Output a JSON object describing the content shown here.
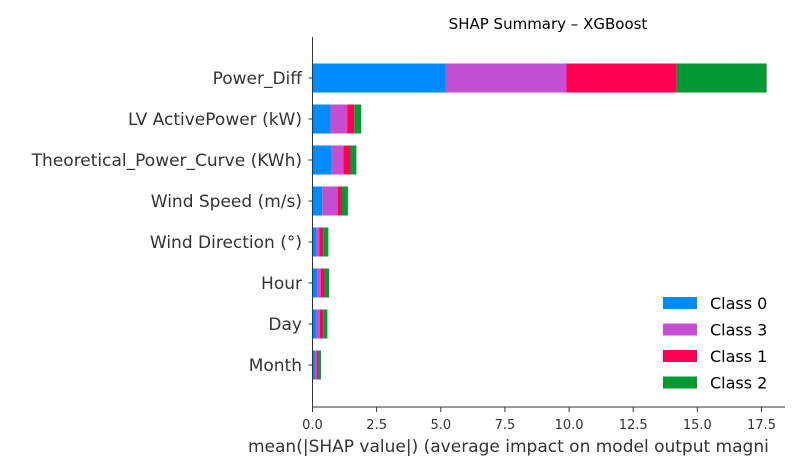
{
  "chart_data": {
    "type": "bar",
    "orientation": "horizontal",
    "stacked": true,
    "title": "SHAP Summary – XGBoost",
    "xlabel": "mean(|SHAP value|) (average impact on model output magni",
    "ylabel": "",
    "xlim": [
      0,
      18.5
    ],
    "x_ticks": [
      "0.0",
      "2.5",
      "5.0",
      "7.5",
      "10.0",
      "12.5",
      "15.0",
      "17.5"
    ],
    "x_tick_values": [
      0,
      2.5,
      5,
      7.5,
      10,
      12.5,
      15,
      17.5
    ],
    "grid": false,
    "legend_position": "bottom-right",
    "categories": [
      "Power_Diff",
      "LV ActivePower (kW)",
      "Theoretical_Power_Curve (KWh)",
      "Wind Speed (m/s)",
      "Wind Direction (°)",
      "Hour",
      "Day",
      "Month"
    ],
    "series": [
      {
        "name": "Class 0",
        "color": "#008bfb",
        "values": [
          5.2,
          0.7,
          0.75,
          0.38,
          0.15,
          0.18,
          0.16,
          0.1
        ]
      },
      {
        "name": "Class 3",
        "color": "#c44fd3",
        "values": [
          4.7,
          0.65,
          0.45,
          0.6,
          0.12,
          0.15,
          0.12,
          0.06
        ]
      },
      {
        "name": "Class 1",
        "color": "#ff0052",
        "values": [
          4.3,
          0.28,
          0.28,
          0.15,
          0.15,
          0.14,
          0.14,
          0.07
        ]
      },
      {
        "name": "Class 2",
        "color": "#009933",
        "values": [
          3.5,
          0.27,
          0.23,
          0.25,
          0.2,
          0.18,
          0.16,
          0.1
        ]
      }
    ]
  }
}
